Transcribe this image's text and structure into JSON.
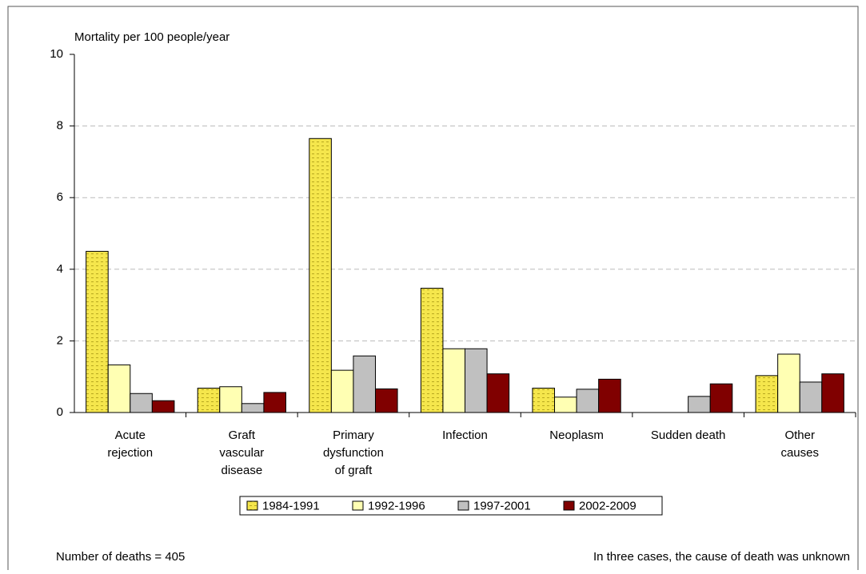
{
  "chart_data": {
    "type": "bar",
    "y_label": "Mortality per 100 people/year",
    "categories": [
      [
        "Acute",
        "rejection"
      ],
      [
        "Graft",
        "vascular",
        "disease"
      ],
      [
        "Primary",
        "dysfunction",
        "of graft"
      ],
      [
        "Infection"
      ],
      [
        "Neoplasm"
      ],
      [
        "Sudden death"
      ],
      [
        "Other",
        "causes"
      ]
    ],
    "series": [
      {
        "name": "1984-1991",
        "color": "#f5e64c",
        "hatch": true,
        "values": [
          4.5,
          0.68,
          7.65,
          3.47,
          0.68,
          0,
          1.03
        ]
      },
      {
        "name": "1992-1996",
        "color": "#ffffb3",
        "hatch": false,
        "values": [
          1.33,
          0.72,
          1.18,
          1.78,
          0.43,
          0,
          1.63
        ]
      },
      {
        "name": "1997-2001",
        "color": "#c0c0c0",
        "hatch": false,
        "values": [
          0.53,
          0.25,
          1.58,
          1.78,
          0.65,
          0.45,
          0.85
        ]
      },
      {
        "name": "2002-2009",
        "color": "#800000",
        "hatch": false,
        "values": [
          0.33,
          0.56,
          0.66,
          1.08,
          0.93,
          0.8,
          1.08
        ]
      }
    ],
    "ylim": [
      0,
      10
    ],
    "yticks": [
      0,
      2,
      4,
      6,
      8,
      10
    ],
    "grid": true,
    "footnote_left": "Number of deaths = 405",
    "footnote_right": "In three cases, the cause of death was unknown"
  }
}
